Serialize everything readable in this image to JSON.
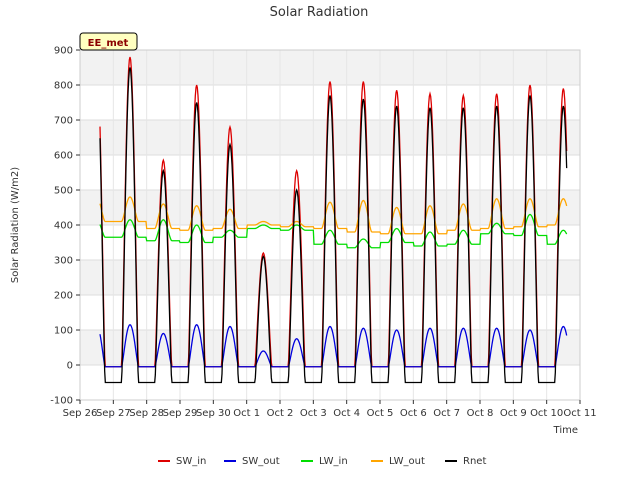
{
  "chart_data": {
    "type": "line",
    "title": "Solar Radiation",
    "xlabel": "Time",
    "ylabel": "Solar Radiation (W/m2)",
    "ylim": [
      -100,
      900
    ],
    "yticks": [
      -100,
      0,
      100,
      200,
      300,
      400,
      500,
      600,
      700,
      800,
      900
    ],
    "xlim": [
      0,
      15
    ],
    "xtick_labels": [
      "Sep 26",
      "Sep 27",
      "Sep 28",
      "Sep 29",
      "Sep 30",
      "Oct 1",
      "Oct 2",
      "Oct 3",
      "Oct 4",
      "Oct 5",
      "Oct 6",
      "Oct 7",
      "Oct 8",
      "Oct 9",
      "Oct 10",
      "Oct 11"
    ],
    "grid": true,
    "legend_position": "bottom",
    "annotation": "EE_met",
    "days": [
      "Sep 27",
      "Sep 28",
      "Sep 29",
      "Sep 30",
      "Oct 1",
      "Oct 2",
      "Oct 3",
      "Oct 4",
      "Oct 5",
      "Oct 6",
      "Oct 7",
      "Oct 8",
      "Oct 9",
      "Oct 10"
    ],
    "series": [
      {
        "name": "SW_in",
        "color": "#dd0000",
        "kind": "daily_peak",
        "night": -5,
        "peaks": [
          880,
          585,
          800,
          680,
          320,
          555,
          810,
          810,
          785,
          775,
          770,
          775,
          800,
          790
        ]
      },
      {
        "name": "SW_out",
        "color": "#0000dd",
        "kind": "daily_peak",
        "night": -5,
        "peaks": [
          115,
          90,
          115,
          110,
          40,
          75,
          110,
          105,
          100,
          105,
          105,
          105,
          100,
          110
        ]
      },
      {
        "name": "LW_in",
        "color": "#00dd00",
        "kind": "daily_level",
        "values": [
          365,
          355,
          350,
          365,
          390,
          385,
          345,
          335,
          350,
          340,
          345,
          375,
          370,
          345
        ],
        "day_bump": [
          50,
          60,
          50,
          20,
          10,
          15,
          40,
          25,
          40,
          40,
          40,
          30,
          60,
          40
        ]
      },
      {
        "name": "LW_out",
        "color": "#ffa500",
        "kind": "daily_level",
        "values": [
          410,
          390,
          385,
          390,
          400,
          395,
          390,
          380,
          375,
          375,
          385,
          390,
          395,
          400
        ],
        "day_bump": [
          70,
          70,
          70,
          55,
          10,
          15,
          75,
          90,
          75,
          80,
          75,
          85,
          80,
          75
        ]
      },
      {
        "name": "Rnet",
        "color": "#000000",
        "kind": "daily_peak",
        "night": -50,
        "peaks": [
          850,
          555,
          750,
          630,
          310,
          500,
          770,
          760,
          740,
          735,
          735,
          740,
          770,
          740
        ]
      }
    ]
  }
}
